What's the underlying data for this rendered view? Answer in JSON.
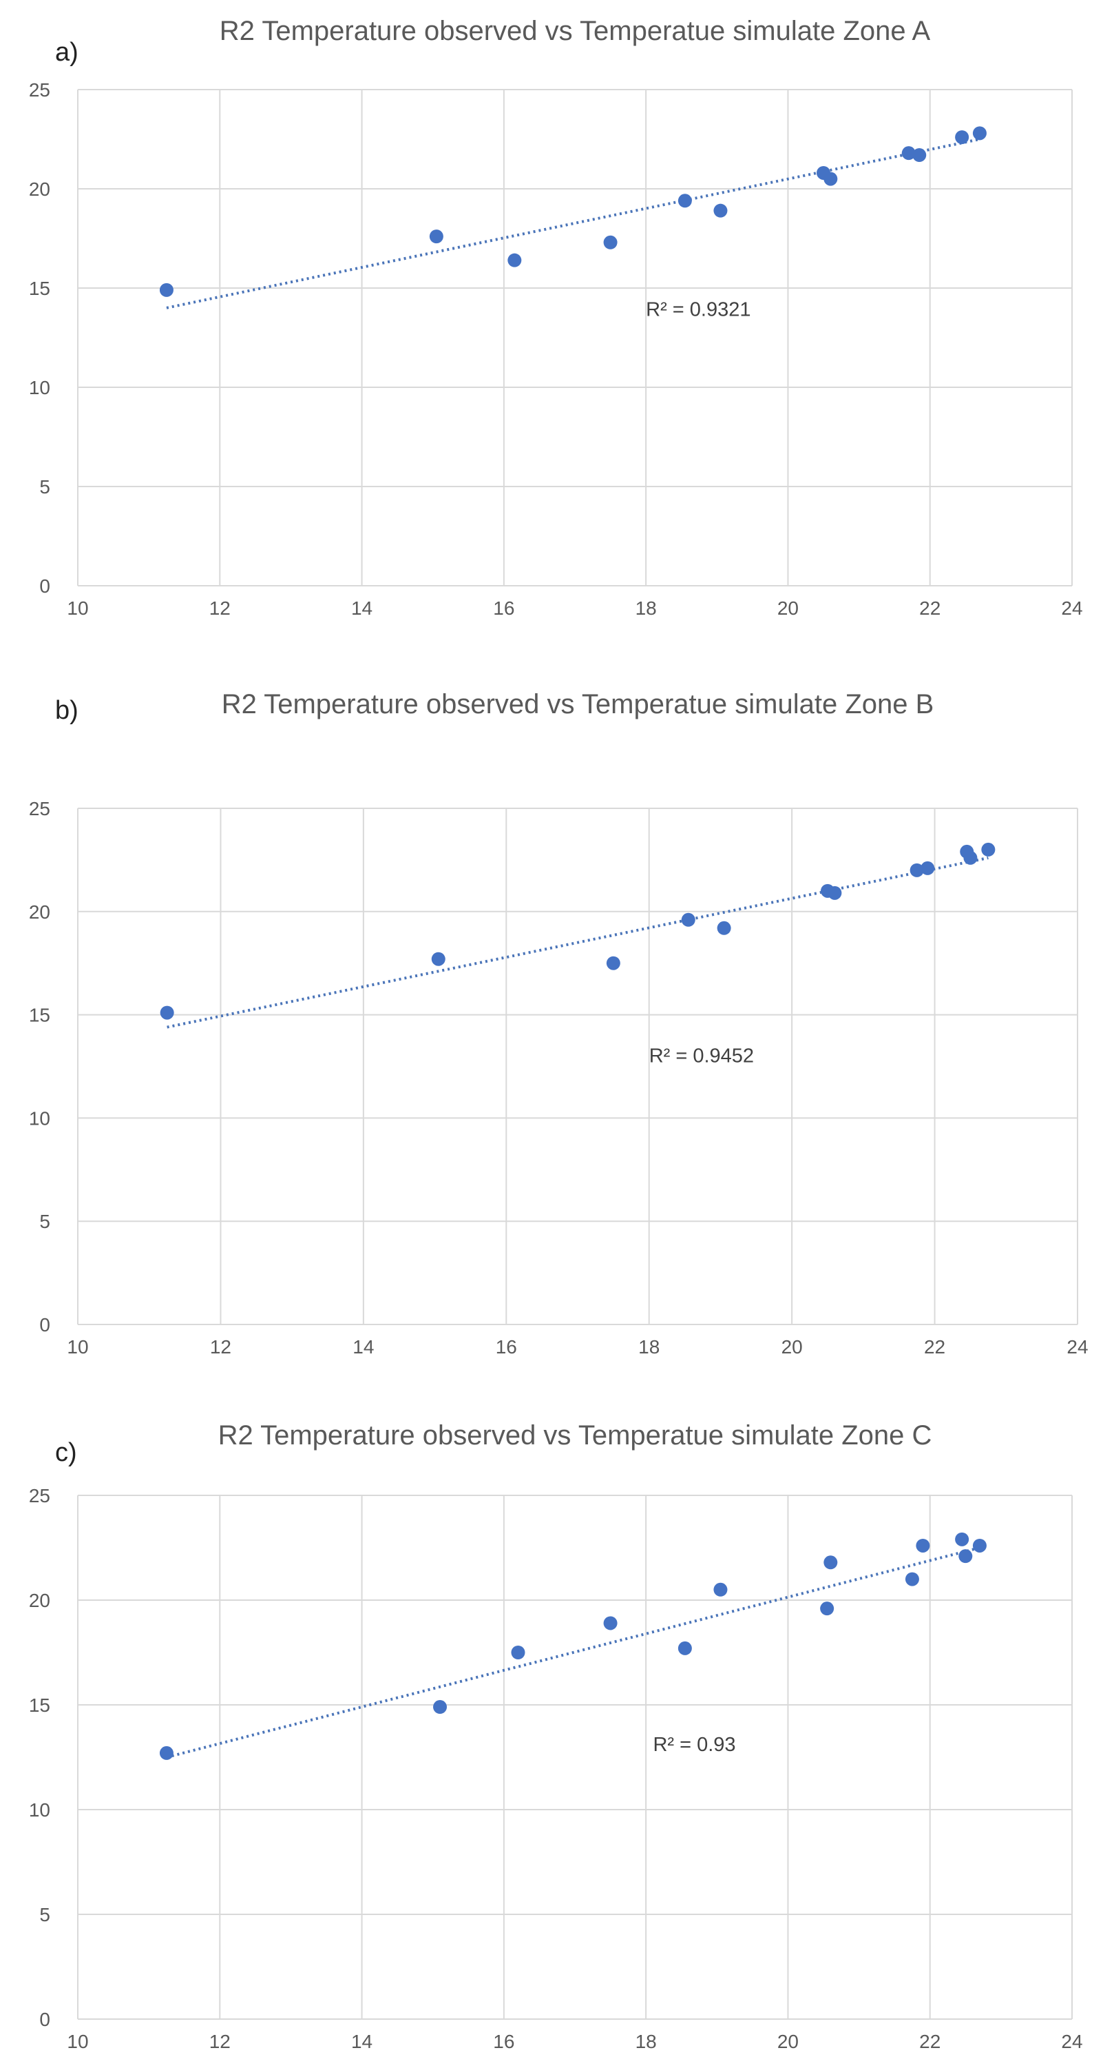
{
  "colors": {
    "marker": "#4472c4",
    "trendline": "#4a74b8",
    "grid": "#d9d9d9",
    "text": "#595959"
  },
  "chart_data": [
    {
      "panel": "a)",
      "type": "scatter",
      "title": "R2 Temperature observed vs Temperatue simulate Zone A",
      "xlabel": "",
      "ylabel": "",
      "xlim": [
        10,
        24
      ],
      "ylim": [
        0,
        25
      ],
      "x_ticks": [
        "10",
        "12",
        "14",
        "16",
        "18",
        "20",
        "22",
        "24"
      ],
      "y_ticks": [
        "0",
        "5",
        "10",
        "15",
        "20",
        "25"
      ],
      "points": [
        [
          11.25,
          14.9
        ],
        [
          15.05,
          17.6
        ],
        [
          16.15,
          16.4
        ],
        [
          17.5,
          17.3
        ],
        [
          18.55,
          19.4
        ],
        [
          19.05,
          18.9
        ],
        [
          20.5,
          20.8
        ],
        [
          20.6,
          20.5
        ],
        [
          21.7,
          21.8
        ],
        [
          21.85,
          21.7
        ],
        [
          22.45,
          22.6
        ],
        [
          22.7,
          22.8
        ]
      ],
      "trendline": {
        "x": [
          11.25,
          22.7
        ],
        "y": [
          14.0,
          22.5
        ]
      },
      "r2_label": "R² = 0.9321",
      "r2_pos": [
        18.0,
        13.6
      ]
    },
    {
      "panel": "b)",
      "type": "scatter",
      "title": "R2 Temperature observed vs Temperatue simulate Zone B",
      "xlabel": "",
      "ylabel": "",
      "xlim": [
        10,
        24
      ],
      "ylim": [
        0,
        25
      ],
      "x_ticks": [
        "10",
        "12",
        "14",
        "16",
        "18",
        "20",
        "22",
        "24"
      ],
      "y_ticks": [
        "0",
        "5",
        "10",
        "15",
        "20",
        "25"
      ],
      "points": [
        [
          11.25,
          15.1
        ],
        [
          15.05,
          17.7
        ],
        [
          17.5,
          17.5
        ],
        [
          18.55,
          19.6
        ],
        [
          19.05,
          19.2
        ],
        [
          20.5,
          21.0
        ],
        [
          20.6,
          20.9
        ],
        [
          21.75,
          22.0
        ],
        [
          21.9,
          22.1
        ],
        [
          22.45,
          22.9
        ],
        [
          22.5,
          22.6
        ],
        [
          22.75,
          23.0
        ]
      ],
      "trendline": {
        "x": [
          11.25,
          22.75
        ],
        "y": [
          14.4,
          22.6
        ]
      },
      "r2_label": "R² = 0.9452",
      "r2_pos": [
        18.0,
        12.7
      ]
    },
    {
      "panel": "c)",
      "type": "scatter",
      "title": "R2 Temperature observed vs Temperatue simulate Zone C",
      "xlabel": "",
      "ylabel": "",
      "xlim": [
        10,
        24
      ],
      "ylim": [
        0,
        25
      ],
      "x_ticks": [
        "10",
        "12",
        "14",
        "16",
        "18",
        "20",
        "22",
        "24"
      ],
      "y_ticks": [
        "0",
        "5",
        "10",
        "15",
        "20",
        "25"
      ],
      "points": [
        [
          11.25,
          12.7
        ],
        [
          15.1,
          14.9
        ],
        [
          16.2,
          17.5
        ],
        [
          17.5,
          18.9
        ],
        [
          18.55,
          17.7
        ],
        [
          19.05,
          20.5
        ],
        [
          20.55,
          19.6
        ],
        [
          20.6,
          21.8
        ],
        [
          21.75,
          21.0
        ],
        [
          21.9,
          22.6
        ],
        [
          22.45,
          22.9
        ],
        [
          22.5,
          22.1
        ],
        [
          22.7,
          22.6
        ]
      ],
      "trendline": {
        "x": [
          11.25,
          22.7
        ],
        "y": [
          12.5,
          22.5
        ]
      },
      "r2_label": "R² = 0.93",
      "r2_pos": [
        18.1,
        12.8
      ]
    }
  ]
}
